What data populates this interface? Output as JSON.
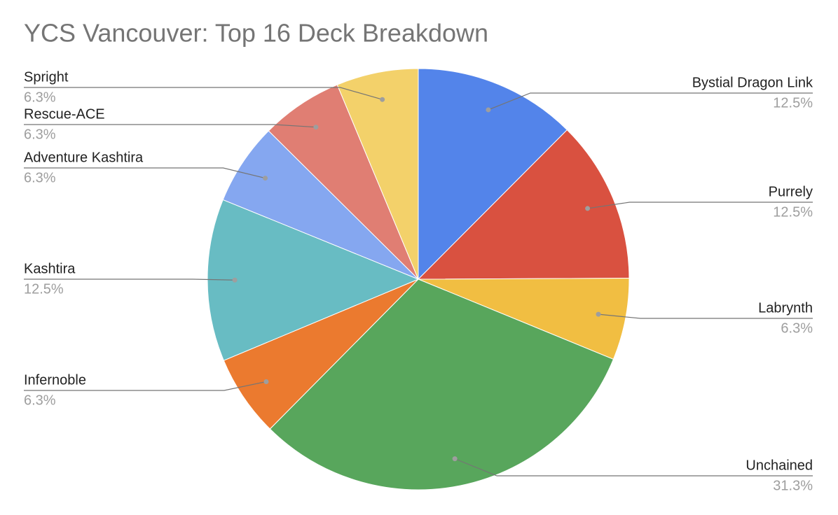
{
  "chart_data": {
    "type": "pie",
    "title": "YCS Vancouver: Top 16 Deck Breakdown",
    "categories": [
      "Bystial Dragon Link",
      "Purrely",
      "Labrynth",
      "Unchained",
      "Infernoble",
      "Kashtira",
      "Adventure Kashtira",
      "Rescue-ACE",
      "Spright"
    ],
    "values": [
      12.5,
      12.5,
      6.3,
      31.3,
      6.3,
      12.5,
      6.3,
      6.3,
      6.3
    ],
    "value_labels": [
      "12.5%",
      "12.5%",
      "6.3%",
      "31.3%",
      "6.3%",
      "12.5%",
      "6.3%",
      "6.3%",
      "6.3%"
    ],
    "colors": [
      "#5384ea",
      "#d95140",
      "#f1be42",
      "#58a65c",
      "#eb7a2f",
      "#68bcc3",
      "#85a7f0",
      "#e07e73",
      "#f3d16a"
    ]
  }
}
